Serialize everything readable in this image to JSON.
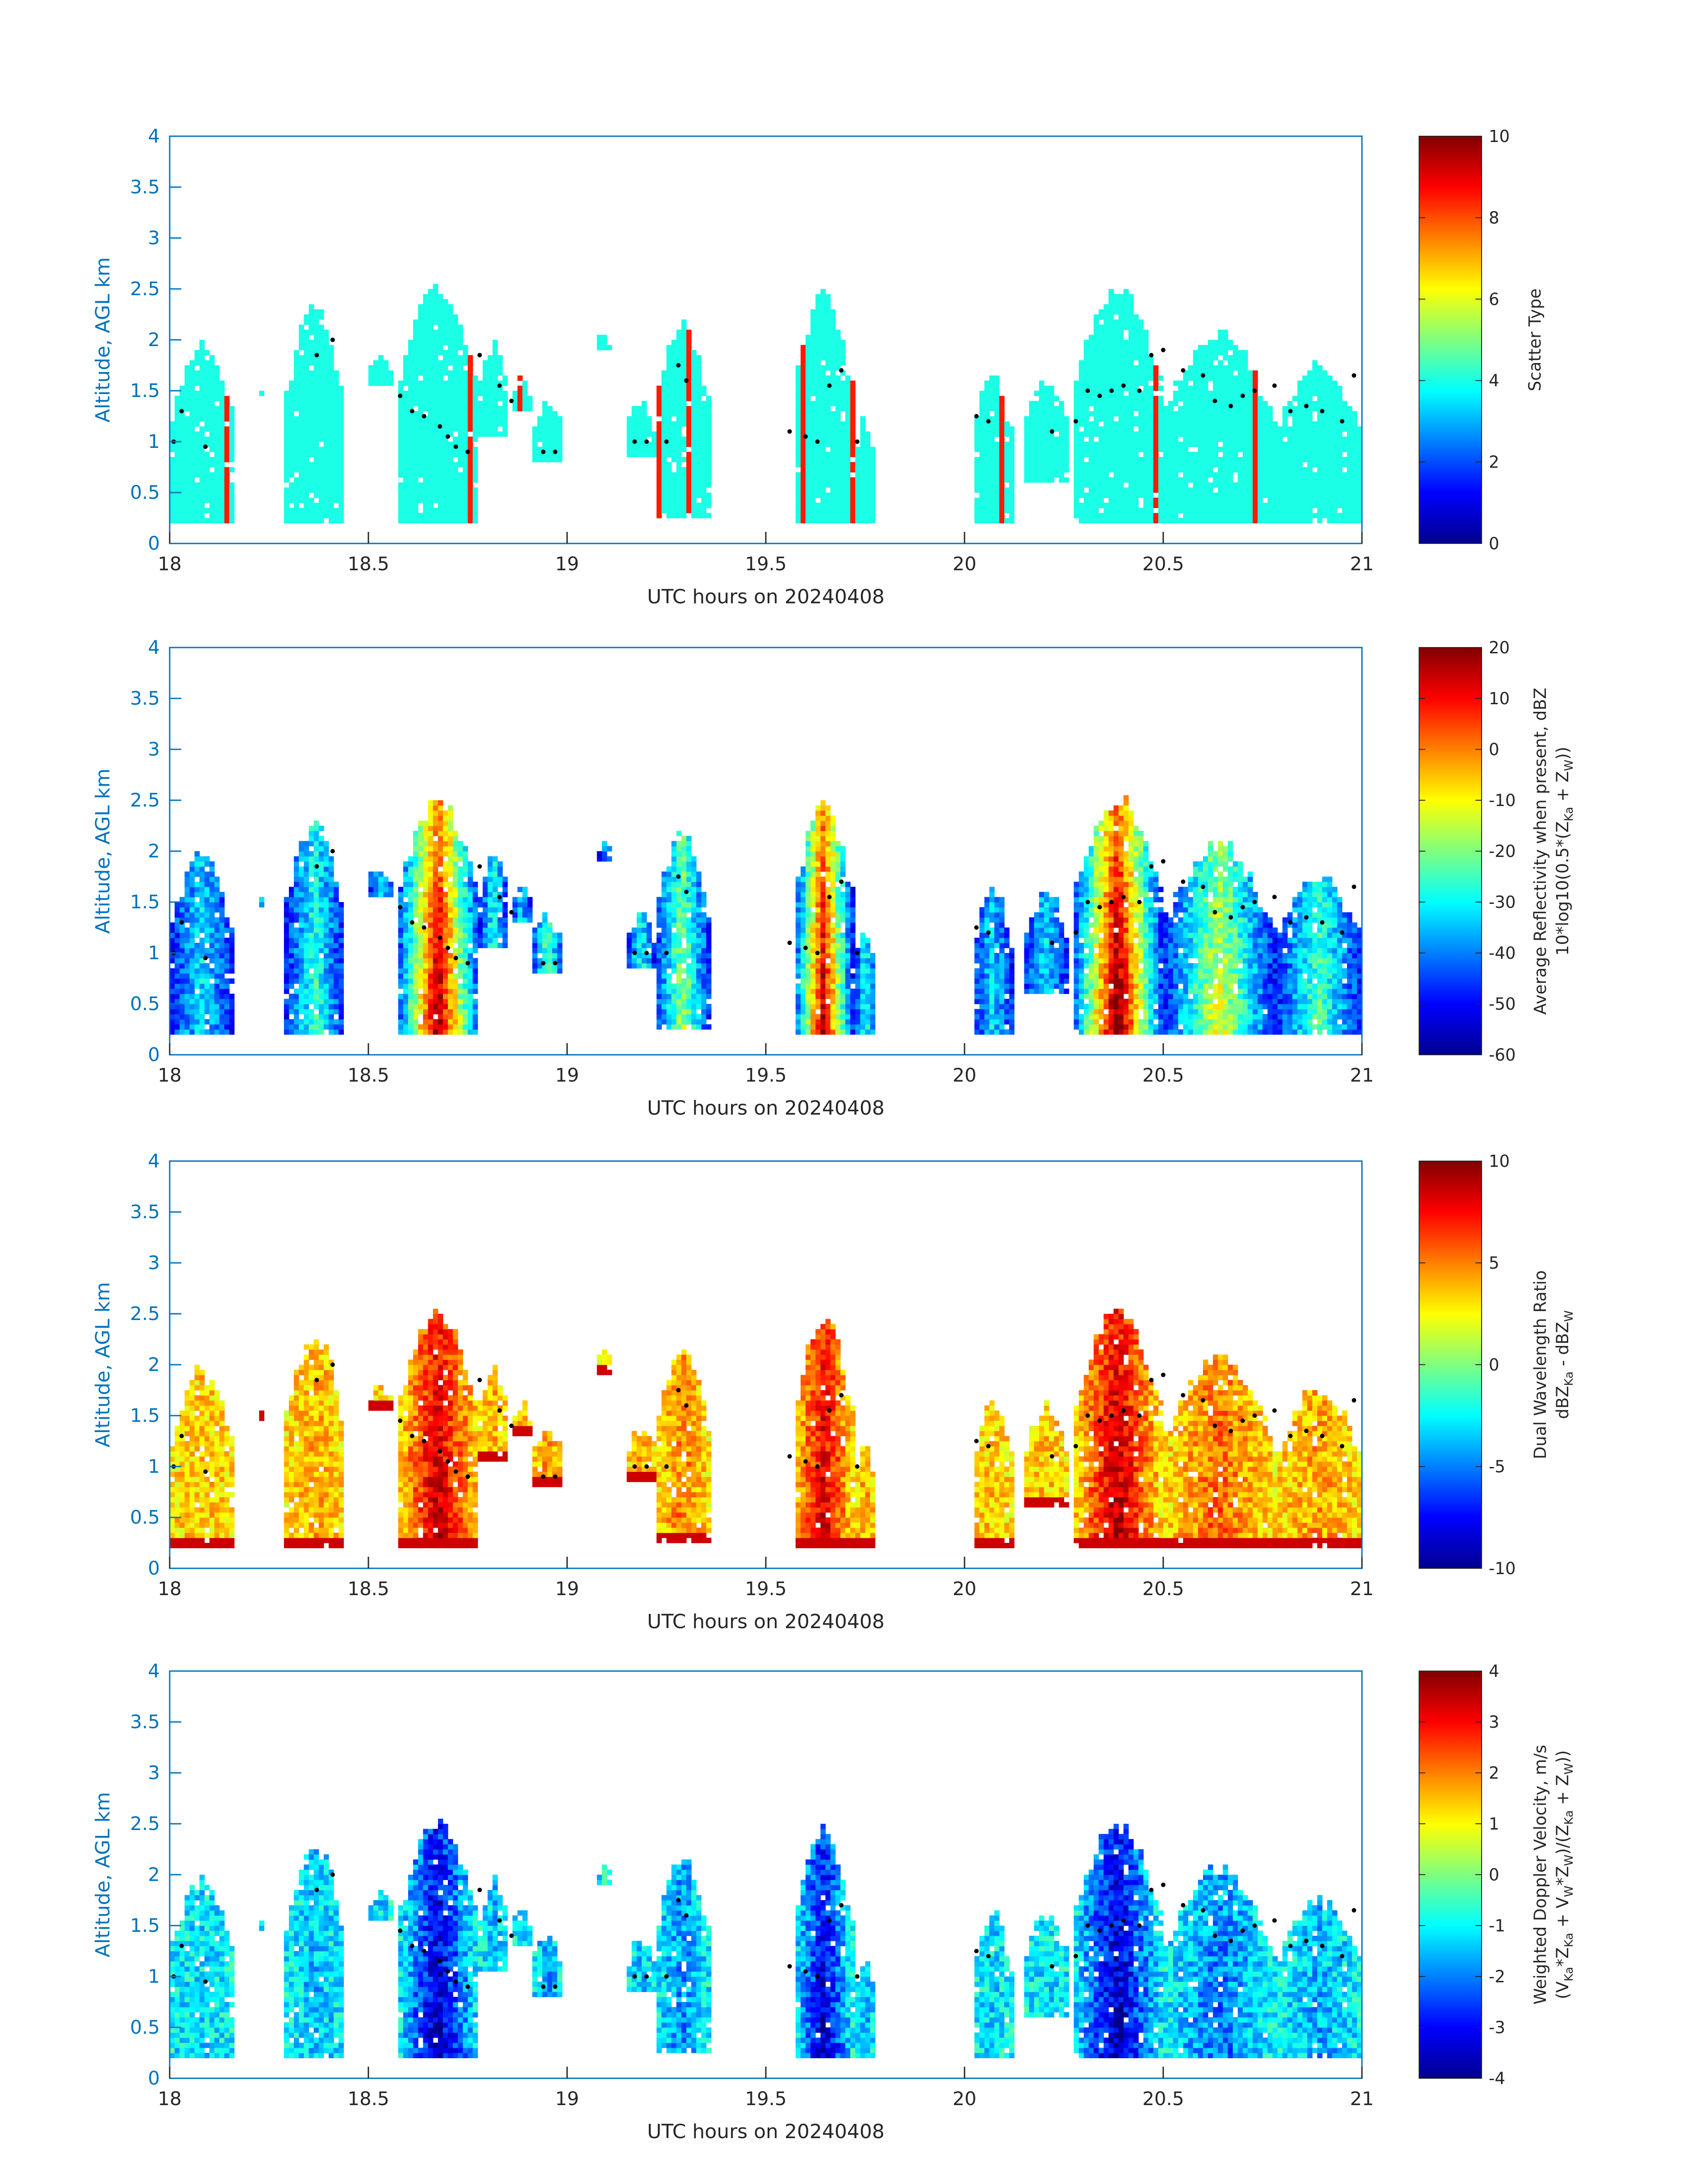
{
  "chart_data": [
    {
      "type": "heatmap",
      "xlabel": "UTC hours on 20240408",
      "ylabel": "Altitude, AGL km",
      "xlim": [
        18,
        21
      ],
      "ylim": [
        0,
        4
      ],
      "x_ticks": [
        "18",
        "18.5",
        "19",
        "19.5",
        "20",
        "20.5",
        "21"
      ],
      "y_ticks": [
        "0",
        "0.5",
        "1",
        "1.5",
        "2",
        "2.5",
        "3",
        "3.5",
        "4"
      ],
      "colormap": "jet",
      "colorbar": {
        "label": "Scatter Type",
        "range": [
          0,
          10
        ],
        "ticks": [
          "0",
          "2",
          "4",
          "6",
          "8",
          "10"
        ]
      },
      "field": "scatter_type",
      "scatter_values": {
        "dominant": 4,
        "secondary": 8.5
      }
    },
    {
      "type": "heatmap",
      "xlabel": "UTC hours on 20240408",
      "ylabel": "Altitude, AGL km",
      "xlim": [
        18,
        21
      ],
      "ylim": [
        0,
        4
      ],
      "x_ticks": [
        "18",
        "18.5",
        "19",
        "19.5",
        "20",
        "20.5",
        "21"
      ],
      "y_ticks": [
        "0",
        "0.5",
        "1",
        "1.5",
        "2",
        "2.5",
        "3",
        "3.5",
        "4"
      ],
      "colormap": "jet",
      "colorbar": {
        "label_line1": "Average Reflectivity when present, dBZ",
        "label_line2": "10*log10(0.5*(Z",
        "label_sub_a": "Ka",
        "label_mid": " + Z",
        "label_sub_b": "W",
        "label_end": "))",
        "range": [
          -60,
          20
        ],
        "ticks": [
          "-60",
          "-50",
          "-40",
          "-30",
          "-20",
          "-10",
          "0",
          "10",
          "20"
        ]
      },
      "field": "reflectivity_dbz"
    },
    {
      "type": "heatmap",
      "xlabel": "UTC hours on 20240408",
      "ylabel": "Altitude, AGL km",
      "xlim": [
        18,
        21
      ],
      "ylim": [
        0,
        4
      ],
      "x_ticks": [
        "18",
        "18.5",
        "19",
        "19.5",
        "20",
        "20.5",
        "21"
      ],
      "y_ticks": [
        "0",
        "0.5",
        "1",
        "1.5",
        "2",
        "2.5",
        "3",
        "3.5",
        "4"
      ],
      "colormap": "jet",
      "colorbar": {
        "label_line1": "Dual Wavelength Ratio",
        "label_line2": "dBZ",
        "label_sub_a": "Ka",
        "label_mid": " - dBZ",
        "label_sub_b": "W",
        "label_end": "",
        "range": [
          -10,
          10
        ],
        "ticks": [
          "-10",
          "-5",
          "0",
          "5",
          "10"
        ]
      },
      "field": "dual_wavelength_ratio"
    },
    {
      "type": "heatmap",
      "xlabel": "UTC hours on 20240408",
      "ylabel": "Altitude, AGL km",
      "xlim": [
        18,
        21
      ],
      "ylim": [
        0,
        4
      ],
      "x_ticks": [
        "18",
        "18.5",
        "19",
        "19.5",
        "20",
        "20.5",
        "21"
      ],
      "y_ticks": [
        "0",
        "0.5",
        "1",
        "1.5",
        "2",
        "2.5",
        "3",
        "3.5",
        "4"
      ],
      "colormap": "jet",
      "colorbar": {
        "label_line1": "Weighted Doppler Velocity, m/s",
        "label_line2": "(V",
        "label_sub_a": "Ka",
        "label_mid": "*Z",
        "label_sub_b": "Ka",
        "label_mid2": " + V",
        "label_sub_c": "W",
        "label_mid3": "*Z",
        "label_sub_d": "W",
        "label_mid4": ")/(Z",
        "label_sub_e": "Ka",
        "label_mid5": " + Z",
        "label_sub_f": "W",
        "label_end": "))",
        "range": [
          -4,
          4
        ],
        "ticks": [
          "-4",
          "-3",
          "-2",
          "-1",
          "0",
          "1",
          "2",
          "3",
          "4"
        ]
      },
      "field": "doppler_velocity"
    }
  ],
  "cloud_columns": [
    {
      "x0": 18.0,
      "x1": 18.16,
      "bot": 0.2,
      "top": 1.95,
      "core": 0.1
    },
    {
      "x0": 18.22,
      "x1": 18.24,
      "bot": 1.45,
      "top": 1.55,
      "core": 0.0
    },
    {
      "x0": 18.29,
      "x1": 18.44,
      "bot": 0.2,
      "top": 2.3,
      "core": 0.2
    },
    {
      "x0": 18.5,
      "x1": 18.56,
      "bot": 1.55,
      "top": 1.8,
      "core": 0.1
    },
    {
      "x0": 18.57,
      "x1": 18.78,
      "bot": 0.2,
      "top": 2.5,
      "core": 0.95
    },
    {
      "x0": 18.78,
      "x1": 18.85,
      "bot": 1.05,
      "top": 1.95,
      "core": 0.2
    },
    {
      "x0": 18.86,
      "x1": 18.91,
      "bot": 1.3,
      "top": 1.6,
      "core": 0.1
    },
    {
      "x0": 18.91,
      "x1": 18.99,
      "bot": 0.8,
      "top": 1.35,
      "core": 0.3
    },
    {
      "x0": 19.08,
      "x1": 19.11,
      "bot": 1.9,
      "top": 2.1,
      "core": 0.0
    },
    {
      "x0": 19.15,
      "x1": 19.22,
      "bot": 0.85,
      "top": 1.35,
      "core": 0.2
    },
    {
      "x0": 19.22,
      "x1": 19.36,
      "bot": 0.25,
      "top": 2.15,
      "core": 0.35
    },
    {
      "x0": 19.57,
      "x1": 19.72,
      "bot": 0.2,
      "top": 2.45,
      "core": 0.9
    },
    {
      "x0": 19.72,
      "x1": 19.78,
      "bot": 0.2,
      "top": 1.2,
      "core": 0.2
    },
    {
      "x0": 20.02,
      "x1": 20.12,
      "bot": 0.2,
      "top": 1.65,
      "core": 0.1
    },
    {
      "x0": 20.15,
      "x1": 20.26,
      "bot": 0.6,
      "top": 1.6,
      "core": 0.1
    },
    {
      "x0": 20.27,
      "x1": 20.5,
      "bot": 0.2,
      "top": 2.5,
      "core": 1.0
    },
    {
      "x0": 20.5,
      "x1": 20.78,
      "bot": 0.2,
      "top": 2.05,
      "core": 0.45
    },
    {
      "x0": 20.78,
      "x1": 21.0,
      "bot": 0.2,
      "top": 1.75,
      "core": 0.25
    }
  ],
  "cloud_base_points": [
    [
      18.01,
      1.0
    ],
    [
      18.03,
      1.3
    ],
    [
      18.09,
      0.95
    ],
    [
      18.37,
      1.85
    ],
    [
      18.41,
      2.0
    ],
    [
      18.58,
      1.45
    ],
    [
      18.61,
      1.3
    ],
    [
      18.64,
      1.25
    ],
    [
      18.68,
      1.15
    ],
    [
      18.7,
      1.05
    ],
    [
      18.72,
      0.95
    ],
    [
      18.75,
      0.9
    ],
    [
      18.78,
      1.85
    ],
    [
      18.83,
      1.55
    ],
    [
      18.86,
      1.4
    ],
    [
      18.94,
      0.9
    ],
    [
      18.97,
      0.9
    ],
    [
      19.17,
      1.0
    ],
    [
      19.2,
      1.0
    ],
    [
      19.25,
      1.0
    ],
    [
      19.28,
      1.75
    ],
    [
      19.3,
      1.6
    ],
    [
      19.56,
      1.1
    ],
    [
      19.6,
      1.05
    ],
    [
      19.63,
      1.0
    ],
    [
      19.66,
      1.55
    ],
    [
      19.69,
      1.7
    ],
    [
      19.73,
      1.0
    ],
    [
      20.03,
      1.25
    ],
    [
      20.06,
      1.2
    ],
    [
      20.22,
      1.1
    ],
    [
      20.28,
      1.2
    ],
    [
      20.31,
      1.5
    ],
    [
      20.34,
      1.45
    ],
    [
      20.37,
      1.5
    ],
    [
      20.4,
      1.55
    ],
    [
      20.44,
      1.5
    ],
    [
      20.47,
      1.85
    ],
    [
      20.5,
      1.9
    ],
    [
      20.55,
      1.7
    ],
    [
      20.6,
      1.65
    ],
    [
      20.63,
      1.4
    ],
    [
      20.67,
      1.35
    ],
    [
      20.7,
      1.45
    ],
    [
      20.73,
      1.5
    ],
    [
      20.78,
      1.55
    ],
    [
      20.82,
      1.3
    ],
    [
      20.86,
      1.35
    ],
    [
      20.9,
      1.3
    ],
    [
      20.95,
      1.2
    ],
    [
      20.98,
      1.65
    ]
  ],
  "colors": {
    "axis": "#0072BD",
    "text": "#262626",
    "background": "#ffffff"
  }
}
